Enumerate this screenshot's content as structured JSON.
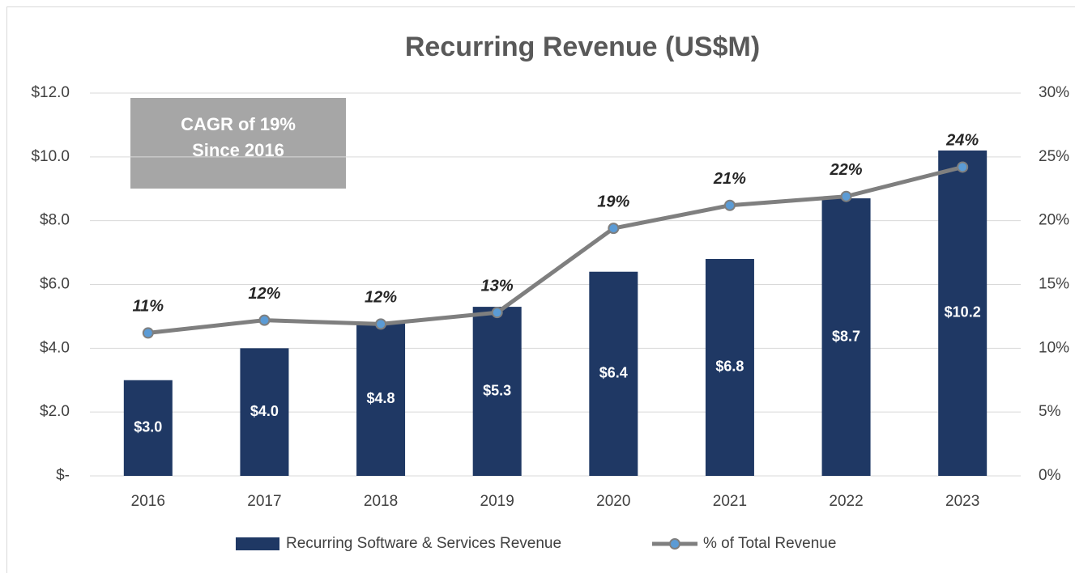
{
  "chart_data": {
    "type": "bar",
    "title": "Recurring Revenue (US$M)",
    "annotation": [
      "CAGR of 19%",
      "Since 2016"
    ],
    "categories": [
      "2016",
      "2017",
      "2018",
      "2019",
      "2020",
      "2021",
      "2022",
      "2023"
    ],
    "series": [
      {
        "name": "Recurring Software & Services Revenue",
        "type": "bar",
        "axis": "y",
        "color": "#1f3864",
        "values": [
          3.0,
          4.0,
          4.8,
          5.3,
          6.4,
          6.8,
          8.7,
          10.2
        ],
        "value_labels": [
          "$3.0",
          "$4.0",
          "$4.8",
          "$5.3",
          "$6.4",
          "$6.8",
          "$8.7",
          "$10.2"
        ]
      },
      {
        "name": "% of Total Revenue",
        "type": "line",
        "axis": "y2",
        "color": "#7f7f7f",
        "marker_color": "#5b9bd5",
        "values": [
          11.2,
          12.2,
          11.9,
          12.8,
          19.4,
          21.2,
          21.9,
          24.2
        ],
        "value_labels": [
          "11%",
          "12%",
          "12%",
          "13%",
          "19%",
          "21%",
          "22%",
          "24%"
        ]
      }
    ],
    "ylim": [
      0,
      12
    ],
    "yticks": [
      {
        "value": 0,
        "label": "$-"
      },
      {
        "value": 2,
        "label": "$2.0"
      },
      {
        "value": 4,
        "label": "$4.0"
      },
      {
        "value": 6,
        "label": "$6.0"
      },
      {
        "value": 8,
        "label": "$8.0"
      },
      {
        "value": 10,
        "label": "$10.0"
      },
      {
        "value": 12,
        "label": "$12.0"
      }
    ],
    "y2lim": [
      0,
      30
    ],
    "y2ticks": [
      {
        "value": 0,
        "label": "0%"
      },
      {
        "value": 5,
        "label": "5%"
      },
      {
        "value": 10,
        "label": "10%"
      },
      {
        "value": 15,
        "label": "15%"
      },
      {
        "value": 20,
        "label": "20%"
      },
      {
        "value": 25,
        "label": "25%"
      },
      {
        "value": 30,
        "label": "30%"
      }
    ],
    "grid": true,
    "legend": "bottom"
  }
}
